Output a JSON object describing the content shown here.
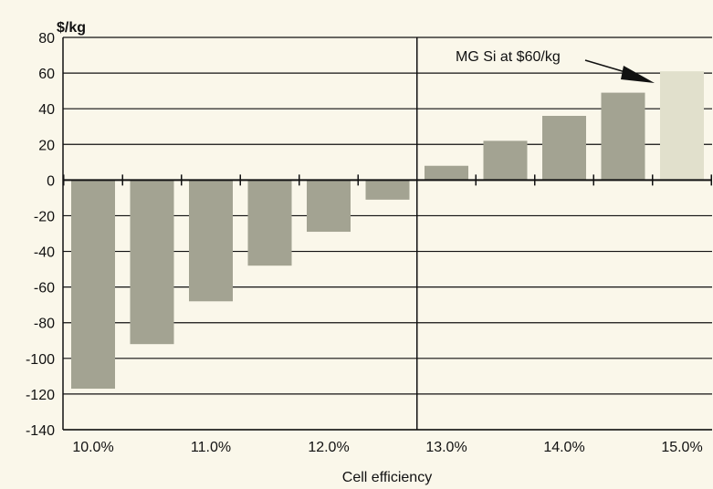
{
  "chart_data": {
    "type": "bar",
    "ylabel": "$/kg",
    "xlabel": "Cell efficiency",
    "ylim": [
      -140,
      80
    ],
    "ytick_step": 20,
    "x_tick_labels": [
      "10.0%",
      "11.0%",
      "12.0%",
      "13.0%",
      "14.0%",
      "15.0%"
    ],
    "categories": [
      "10.0%",
      "10.5%",
      "11.0%",
      "11.5%",
      "12.0%",
      "12.5%",
      "13.0%",
      "13.5%",
      "14.0%",
      "14.5%",
      "15.0%"
    ],
    "values": [
      -117,
      -92,
      -68,
      -48,
      -29,
      -11,
      8,
      22,
      36,
      49,
      61
    ],
    "grid": true,
    "divider_category": "12.75%",
    "annotation": {
      "text": "MG Si at $60/kg",
      "points_to": "15.0%"
    },
    "colors": {
      "bar": "#a3a392",
      "highlight_bar": "#e1e0cc",
      "background": "#faf7ea",
      "grid": "#111111"
    }
  }
}
